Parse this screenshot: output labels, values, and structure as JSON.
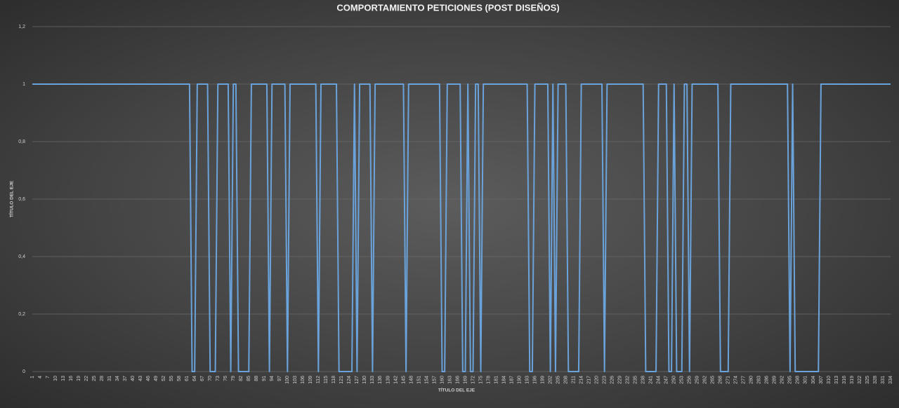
{
  "chart_data": {
    "type": "line",
    "title": "COMPORTAMIENTO PETICIONES (POST DISEÑOS)",
    "x_label": "TÍTULO DEL EJE",
    "y_label": "TÍTULO DEL EJE",
    "color": "#6aa3dc",
    "grid": true,
    "xlim": [
      1,
      334
    ],
    "ylim": [
      0,
      1.2
    ],
    "yticks": [
      0,
      {
        "value": 0.2,
        "label": "0,2"
      },
      {
        "value": 0.4,
        "label": "0,4"
      },
      {
        "value": 0.6,
        "label": "0,6"
      },
      {
        "value": 0.8,
        "label": "0,8"
      },
      1,
      {
        "value": 1.2,
        "label": "1,2"
      }
    ],
    "xticks": [
      1,
      4,
      7,
      10,
      13,
      16,
      19,
      22,
      25,
      28,
      31,
      34,
      37,
      40,
      43,
      46,
      49,
      52,
      55,
      58,
      61,
      64,
      67,
      70,
      73,
      76,
      79,
      82,
      85,
      88,
      91,
      94,
      97,
      100,
      103,
      106,
      109,
      112,
      115,
      118,
      121,
      124,
      127,
      130,
      133,
      136,
      139,
      142,
      145,
      148,
      151,
      154,
      157,
      160,
      163,
      166,
      169,
      172,
      175,
      178,
      181,
      184,
      187,
      190,
      193,
      196,
      199,
      202,
      205,
      208,
      211,
      214,
      217,
      220,
      223,
      226,
      229,
      232,
      235,
      238,
      241,
      244,
      247,
      250,
      253,
      256,
      259,
      262,
      265,
      268,
      271,
      274,
      277,
      280,
      283,
      286,
      289,
      292,
      295,
      298,
      301,
      304,
      307,
      310,
      313,
      316,
      319,
      322,
      325,
      328,
      331,
      334
    ],
    "x": [
      1,
      2,
      3,
      4,
      5,
      6,
      7,
      8,
      9,
      10,
      11,
      12,
      13,
      14,
      15,
      16,
      17,
      18,
      19,
      20,
      21,
      22,
      23,
      24,
      25,
      26,
      27,
      28,
      29,
      30,
      31,
      32,
      33,
      34,
      35,
      36,
      37,
      38,
      39,
      40,
      41,
      42,
      43,
      44,
      45,
      46,
      47,
      48,
      49,
      50,
      51,
      52,
      53,
      54,
      55,
      56,
      57,
      58,
      59,
      60,
      61,
      62,
      63,
      64,
      65,
      66,
      67,
      68,
      69,
      70,
      71,
      72,
      73,
      74,
      75,
      76,
      77,
      78,
      79,
      80,
      81,
      82,
      83,
      84,
      85,
      86,
      87,
      88,
      89,
      90,
      91,
      92,
      93,
      94,
      95,
      96,
      97,
      98,
      99,
      100,
      101,
      102,
      103,
      104,
      105,
      106,
      107,
      108,
      109,
      110,
      111,
      112,
      113,
      114,
      115,
      116,
      117,
      118,
      119,
      120,
      121,
      122,
      123,
      124,
      125,
      126,
      127,
      128,
      129,
      130,
      131,
      132,
      133,
      134,
      135,
      136,
      137,
      138,
      139,
      140,
      141,
      142,
      143,
      144,
      145,
      146,
      147,
      148,
      149,
      150,
      151,
      152,
      153,
      154,
      155,
      156,
      157,
      158,
      159,
      160,
      161,
      162,
      163,
      164,
      165,
      166,
      167,
      168,
      169,
      170,
      171,
      172,
      173,
      174,
      175,
      176,
      177,
      178,
      179,
      180,
      181,
      182,
      183,
      184,
      185,
      186,
      187,
      188,
      189,
      190,
      191,
      192,
      193,
      194,
      195,
      196,
      197,
      198,
      199,
      200,
      201,
      202,
      203,
      204,
      205,
      206,
      207,
      208,
      209,
      210,
      211,
      212,
      213,
      214,
      215,
      216,
      217,
      218,
      219,
      220,
      221,
      222,
      223,
      224,
      225,
      226,
      227,
      228,
      229,
      230,
      231,
      232,
      233,
      234,
      235,
      236,
      237,
      238,
      239,
      240,
      241,
      242,
      243,
      244,
      245,
      246,
      247,
      248,
      249,
      250,
      251,
      252,
      253,
      254,
      255,
      256,
      257,
      258,
      259,
      260,
      261,
      262,
      263,
      264,
      265,
      266,
      267,
      268,
      269,
      270,
      271,
      272,
      273,
      274,
      275,
      276,
      277,
      278,
      279,
      280,
      281,
      282,
      283,
      284,
      285,
      286,
      287,
      288,
      289,
      290,
      291,
      292,
      293,
      294,
      295,
      296,
      297,
      298,
      299,
      300,
      301,
      302,
      303,
      304,
      305,
      306,
      307,
      308,
      309,
      310,
      311,
      312,
      313,
      314,
      315,
      316,
      317,
      318,
      319,
      320,
      321,
      322,
      323,
      324,
      325,
      326,
      327,
      328,
      329,
      330,
      331,
      332,
      333,
      334
    ],
    "values": [
      1,
      1,
      1,
      1,
      1,
      1,
      1,
      1,
      1,
      1,
      1,
      1,
      1,
      1,
      1,
      1,
      1,
      1,
      1,
      1,
      1,
      1,
      1,
      1,
      1,
      1,
      1,
      1,
      1,
      1,
      1,
      1,
      1,
      1,
      1,
      1,
      1,
      1,
      1,
      1,
      1,
      1,
      1,
      1,
      1,
      1,
      1,
      1,
      1,
      1,
      1,
      1,
      1,
      1,
      1,
      1,
      1,
      1,
      1,
      1,
      1,
      1,
      0,
      0,
      1,
      1,
      1,
      1,
      1,
      0,
      0,
      0,
      1,
      1,
      1,
      1,
      1,
      0,
      1,
      1,
      0,
      0,
      0,
      0,
      0,
      1,
      1,
      1,
      1,
      1,
      1,
      1,
      0,
      1,
      1,
      1,
      1,
      1,
      1,
      0,
      1,
      1,
      1,
      1,
      1,
      1,
      1,
      1,
      1,
      1,
      1,
      0,
      1,
      1,
      1,
      1,
      1,
      1,
      1,
      0,
      0,
      0,
      0,
      0,
      0,
      1,
      0,
      1,
      1,
      1,
      1,
      1,
      0,
      1,
      1,
      1,
      1,
      1,
      1,
      1,
      1,
      1,
      1,
      1,
      1,
      0,
      1,
      1,
      1,
      1,
      1,
      1,
      1,
      1,
      1,
      1,
      1,
      1,
      1,
      0,
      0,
      1,
      1,
      1,
      1,
      1,
      1,
      0,
      0,
      1,
      0,
      0,
      1,
      1,
      0,
      1,
      1,
      1,
      1,
      1,
      1,
      1,
      1,
      1,
      1,
      1,
      1,
      1,
      1,
      1,
      1,
      1,
      1,
      0,
      0,
      1,
      1,
      1,
      1,
      1,
      1,
      0,
      1,
      0,
      1,
      1,
      1,
      1,
      0,
      0,
      0,
      0,
      0,
      1,
      1,
      1,
      1,
      1,
      1,
      1,
      1,
      1,
      0,
      1,
      1,
      1,
      1,
      1,
      1,
      1,
      1,
      1,
      1,
      1,
      1,
      1,
      1,
      1,
      0,
      0,
      0,
      0,
      0,
      1,
      1,
      1,
      1,
      0,
      0,
      1,
      0,
      0,
      0,
      1,
      1,
      0,
      1,
      1,
      1,
      1,
      1,
      1,
      1,
      1,
      1,
      1,
      1,
      0,
      0,
      0,
      0,
      1,
      1,
      1,
      1,
      1,
      1,
      1,
      1,
      1,
      1,
      1,
      1,
      1,
      1,
      1,
      1,
      1,
      1,
      1,
      1,
      1,
      1,
      1,
      0,
      1,
      0,
      0,
      0,
      0,
      0,
      0,
      0,
      0,
      0,
      0,
      1,
      1,
      1,
      1,
      1,
      1,
      1,
      1,
      1,
      1,
      1,
      1,
      1,
      1,
      1,
      1,
      1,
      1,
      1,
      1,
      1,
      1,
      1,
      1,
      1,
      1,
      1,
      1
    ]
  }
}
